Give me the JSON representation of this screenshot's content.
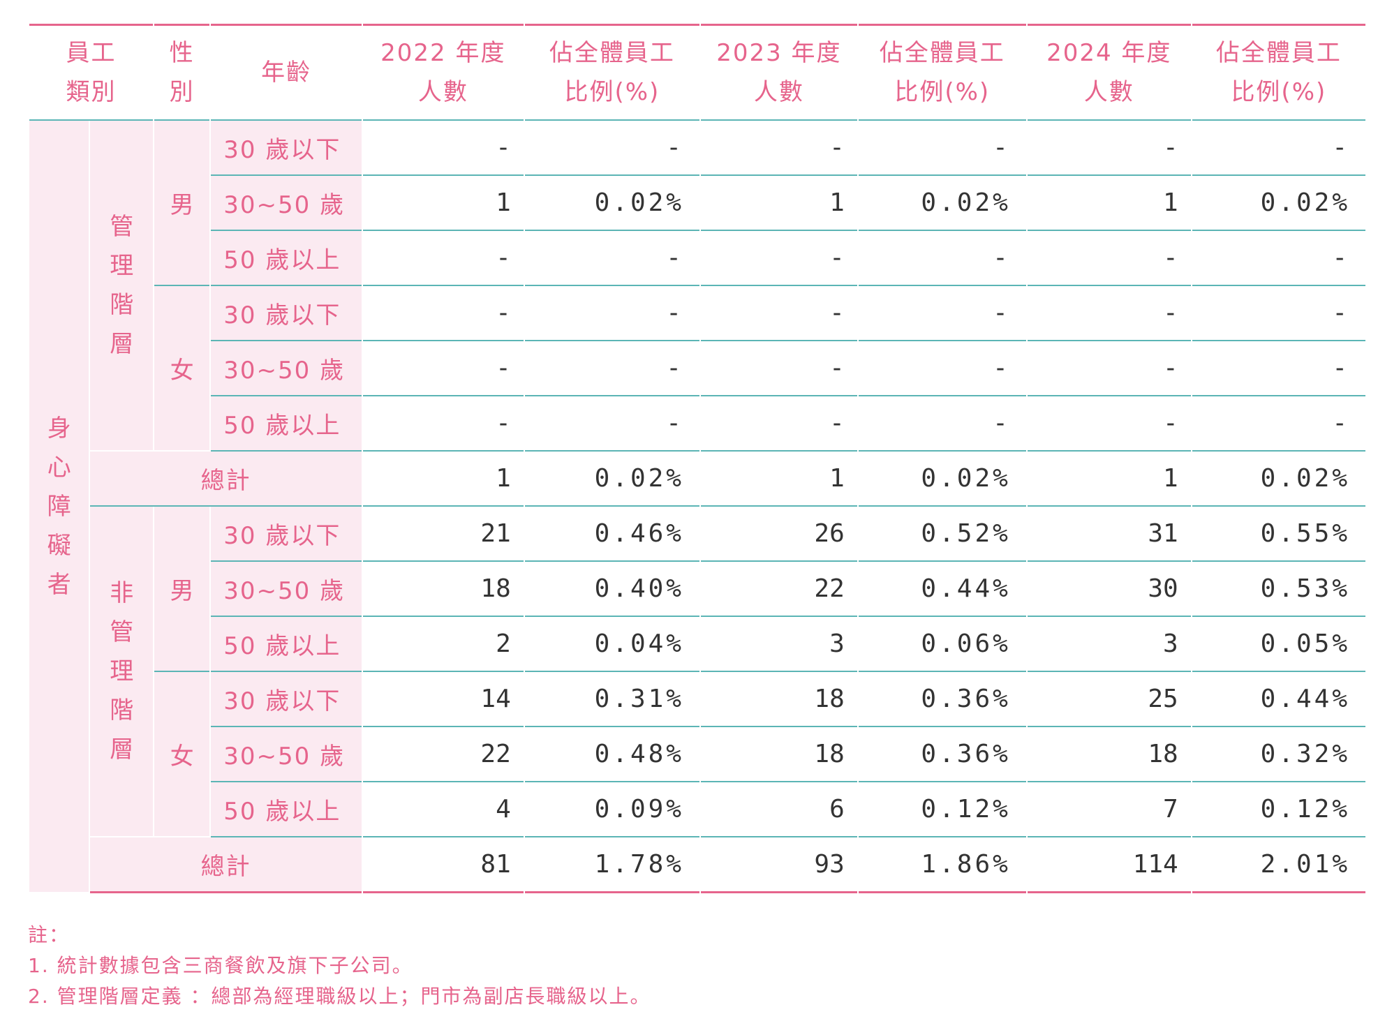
{
  "header": {
    "col_category": "員工類別",
    "col_gender": "性別",
    "col_age": "年齡",
    "col_2022_count": "2022 年度人數",
    "col_2022_ratio": "佔全體員工比例(%)",
    "col_2023_count": "2023 年度人數",
    "col_2023_ratio": "佔全體員工比例(%)",
    "col_2024_count": "2024 年度人數",
    "col_2024_ratio": "佔全體員工比例(%)"
  },
  "category": "身心障礙者",
  "groups": [
    {
      "label": "管理階層",
      "male": "男",
      "female": "女",
      "rows": [
        {
          "age": "30 歲以下",
          "v": [
            "-",
            "-",
            "-",
            "-",
            "-",
            "-"
          ]
        },
        {
          "age": "30~50 歲",
          "v": [
            "1",
            "0.02%",
            "1",
            "0.02%",
            "1",
            "0.02%"
          ]
        },
        {
          "age": "50 歲以上",
          "v": [
            "-",
            "-",
            "-",
            "-",
            "-",
            "-"
          ]
        },
        {
          "age": "30 歲以下",
          "v": [
            "-",
            "-",
            "-",
            "-",
            "-",
            "-"
          ]
        },
        {
          "age": "30~50 歲",
          "v": [
            "-",
            "-",
            "-",
            "-",
            "-",
            "-"
          ]
        },
        {
          "age": "50 歲以上",
          "v": [
            "-",
            "-",
            "-",
            "-",
            "-",
            "-"
          ]
        }
      ],
      "total_label": "總計",
      "total": [
        "1",
        "0.02%",
        "1",
        "0.02%",
        "1",
        "0.02%"
      ]
    },
    {
      "label": "非管理階層",
      "male": "男",
      "female": "女",
      "rows": [
        {
          "age": "30 歲以下",
          "v": [
            "21",
            "0.46%",
            "26",
            "0.52%",
            "31",
            "0.55%"
          ]
        },
        {
          "age": "30~50 歲",
          "v": [
            "18",
            "0.40%",
            "22",
            "0.44%",
            "30",
            "0.53%"
          ]
        },
        {
          "age": "50 歲以上",
          "v": [
            "2",
            "0.04%",
            "3",
            "0.06%",
            "3",
            "0.05%"
          ]
        },
        {
          "age": "30 歲以下",
          "v": [
            "14",
            "0.31%",
            "18",
            "0.36%",
            "25",
            "0.44%"
          ]
        },
        {
          "age": "30~50 歲",
          "v": [
            "22",
            "0.48%",
            "18",
            "0.36%",
            "18",
            "0.32%"
          ]
        },
        {
          "age": "50 歲以上",
          "v": [
            "4",
            "0.09%",
            "6",
            "0.12%",
            "7",
            "0.12%"
          ]
        }
      ],
      "total_label": "總計",
      "total": [
        "81",
        "1.78%",
        "93",
        "1.86%",
        "114",
        "2.01%"
      ]
    }
  ],
  "notes": {
    "title": "註：",
    "line1": "1. 統計數據包含三商餐飲及旗下子公司。",
    "line2": "2. 管理階層定義 ：總部為經理職級以上；門市為副店長職級以上。"
  },
  "colors": {
    "accent": "#e6648c",
    "rule": "#5bb5b5",
    "shade": "#fbeaf1"
  }
}
